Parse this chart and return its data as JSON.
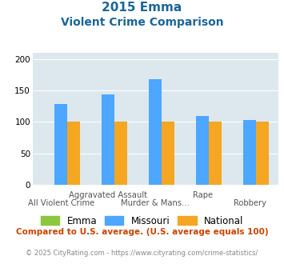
{
  "title_line1": "2015 Emma",
  "title_line2": "Violent Crime Comparison",
  "categories": [
    "All Violent Crime",
    "Aggravated Assault",
    "Murder & Mans...",
    "Rape",
    "Robbery"
  ],
  "emma_values": [
    0,
    0,
    0,
    0,
    0
  ],
  "missouri_values": [
    128,
    144,
    168,
    109,
    103
  ],
  "national_values": [
    100,
    100,
    100,
    100,
    100
  ],
  "emma_color": "#8dc63f",
  "missouri_color": "#4da6ff",
  "national_color": "#f5a623",
  "ylim": [
    0,
    210
  ],
  "yticks": [
    0,
    50,
    100,
    150,
    200
  ],
  "bg_color": "#dce8ed",
  "title_color": "#1a6699",
  "subtitle_text": "Compared to U.S. average. (U.S. average equals 100)",
  "footer_text": "© 2025 CityRating.com - https://www.cityrating.com/crime-statistics/",
  "subtitle_color": "#cc4400",
  "footer_color": "#888888",
  "xlabels_row1": [
    "",
    "Aggravated Assault",
    "",
    "Rape",
    ""
  ],
  "xlabels_row2": [
    "All Violent Crime",
    "",
    "Murder & Mans...",
    "",
    "Robbery"
  ]
}
